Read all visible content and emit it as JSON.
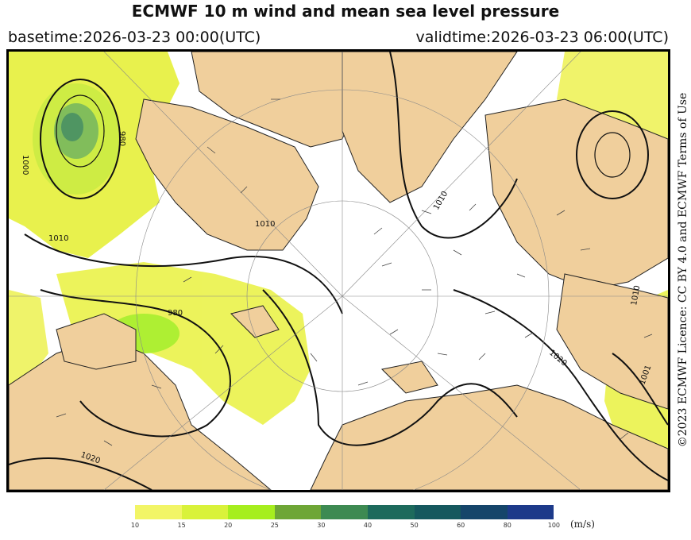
{
  "title": "ECMWF 10 m wind and mean sea level pressure",
  "basetime": "basetime:2026-03-23 00:00(UTC)",
  "validtime": "validtime:2026-03-23 06:00(UTC)",
  "licence": "©2023 ECMWF Licence: CC BY 4.0 and ECMWF Terms of Use",
  "colorbar": {
    "unit": "(m/s)",
    "bins": [
      {
        "from": "10",
        "color": "#f2f566"
      },
      {
        "from": "15",
        "color": "#d9f23a"
      },
      {
        "from": "20",
        "color": "#a6ee1e"
      },
      {
        "from": "25",
        "color": "#6ea636"
      },
      {
        "from": "30",
        "color": "#3d8a52"
      },
      {
        "from": "40",
        "color": "#1d6a5c"
      },
      {
        "from": "50",
        "color": "#15585e"
      },
      {
        "from": "60",
        "color": "#15456a"
      },
      {
        "from": "80",
        "color": "#1d3a8a"
      },
      {
        "from": "100",
        "color": "#2a2fb0"
      }
    ]
  },
  "map": {
    "land_color": "#f0cf9c",
    "sea_color": "#ffffff",
    "wind_color_light": "#f2f566",
    "isobar_labels": [
      "1000",
      "980",
      "1010",
      "1010",
      "1010",
      "980",
      "1020",
      "1020",
      "1010",
      "1001"
    ]
  }
}
